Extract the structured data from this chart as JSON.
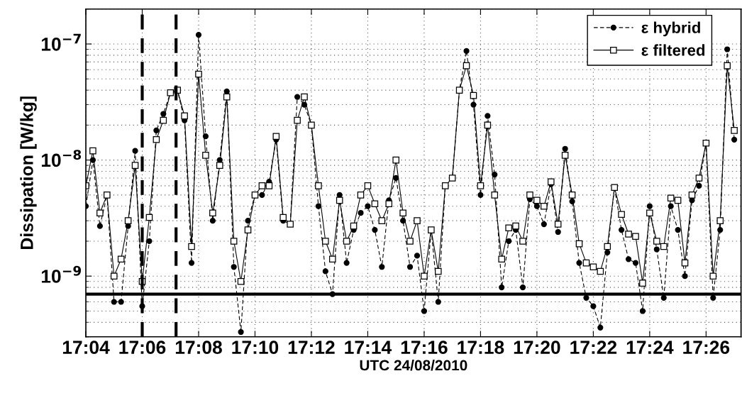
{
  "chart_data": {
    "type": "line",
    "xlabel": "UTC 24/08/2010",
    "ylabel": "Dissipation [W/kg]",
    "log": "y",
    "grid": true,
    "legend": "top right",
    "x": [
      17.06667,
      17.07083,
      17.075,
      17.07917,
      17.08333,
      17.0875,
      17.09167,
      17.09583,
      17.1,
      17.10417,
      17.10833,
      17.1125,
      17.11667,
      17.12083,
      17.125,
      17.12917,
      17.13333,
      17.1375,
      17.14167,
      17.14583,
      17.15,
      17.15417,
      17.15833,
      17.1625,
      17.16667,
      17.17083,
      17.175,
      17.17917,
      17.18333,
      17.1875,
      17.19167,
      17.19583,
      17.2,
      17.20417,
      17.20833,
      17.2125,
      17.21667,
      17.22083,
      17.225,
      17.22917,
      17.23333,
      17.2375,
      17.24167,
      17.24583,
      17.25,
      17.25417,
      17.25833,
      17.2625,
      17.26667,
      17.27083,
      17.275,
      17.27917,
      17.28333,
      17.2875,
      17.29167,
      17.29583,
      17.3,
      17.30417,
      17.30833,
      17.3125,
      17.31667,
      17.32083,
      17.325,
      17.32917,
      17.33333,
      17.3375,
      17.34167,
      17.34583,
      17.35,
      17.35417,
      17.35833,
      17.3625,
      17.36667,
      17.37083,
      17.375,
      17.37917,
      17.38333,
      17.3875,
      17.39167,
      17.39583,
      17.4,
      17.40417,
      17.40833,
      17.4125,
      17.41667,
      17.42083,
      17.425,
      17.42917,
      17.43333,
      17.4375,
      17.44167,
      17.44583,
      17.45
    ],
    "xlim": [
      17.06667,
      17.454
    ],
    "xticks": [
      {
        "value": 17.06667,
        "label": "17:04"
      },
      {
        "value": 17.1,
        "label": "17:06"
      },
      {
        "value": 17.13333,
        "label": "17:08"
      },
      {
        "value": 17.16667,
        "label": "17:10"
      },
      {
        "value": 17.2,
        "label": "17:12"
      },
      {
        "value": 17.23333,
        "label": "17:14"
      },
      {
        "value": 17.26667,
        "label": "17:16"
      },
      {
        "value": 17.3,
        "label": "17:18"
      },
      {
        "value": 17.33333,
        "label": "17:20"
      },
      {
        "value": 17.36667,
        "label": "17:22"
      },
      {
        "value": 17.4,
        "label": "17:24"
      },
      {
        "value": 17.43333,
        "label": "17:26"
      }
    ],
    "ylim": [
      3e-10,
      2e-07
    ],
    "yticks": [
      {
        "value": 1e-09,
        "label": "10$^{−9}$"
      },
      {
        "value": 1e-08,
        "label": "10$^{−8}$"
      },
      {
        "value": 1e-07,
        "label": "10$^{−7}$"
      }
    ],
    "ref_lines": [
      {
        "axis": "y",
        "value": 7e-10,
        "color": "#000000",
        "line_style": "solid"
      },
      {
        "axis": "x",
        "value": 17.1,
        "color": "#000000",
        "line_style": "dashed"
      },
      {
        "axis": "x",
        "value": 17.12,
        "color": "#000000",
        "line_style": "dashed"
      }
    ],
    "series": [
      {
        "name": "ε hybrid",
        "color": "#000000",
        "marker": "circle",
        "line_style": "dashed",
        "values": [
          4e-09,
          1e-08,
          2.7e-09,
          5e-09,
          6e-10,
          6e-10,
          2.7e-09,
          1.2e-08,
          5.5e-10,
          2e-09,
          1.8e-08,
          2.5e-08,
          3.8e-08,
          4e-08,
          2.2e-08,
          1.3e-09,
          1.2e-07,
          1.6e-08,
          3e-09,
          1e-08,
          3.9e-08,
          1.2e-09,
          3.3e-10,
          3e-09,
          5e-09,
          5e-09,
          6.5e-09,
          1.5e-08,
          3e-09,
          2.8e-09,
          3.5e-08,
          3e-08,
          2e-08,
          4e-09,
          1.1e-09,
          7e-10,
          5e-09,
          1.3e-09,
          2.5e-09,
          3.5e-09,
          4e-09,
          2.5e-09,
          1.2e-09,
          4.5e-09,
          7e-09,
          3e-09,
          1.2e-09,
          1.5e-09,
          5e-10,
          2.5e-09,
          6e-10,
          6e-09,
          7e-09,
          4e-08,
          8.7e-08,
          3e-08,
          5e-09,
          2.4e-08,
          7.5e-09,
          8e-10,
          2e-09,
          2.5e-09,
          8e-10,
          4.6e-09,
          4e-09,
          2.8e-09,
          6.2e-09,
          2.4e-09,
          1.25e-08,
          4.4e-09,
          1.3e-09,
          6.5e-10,
          5.5e-10,
          3.6e-10,
          1.6e-09,
          5.8e-09,
          2.5e-09,
          1.4e-09,
          1.3e-09,
          5e-10,
          4e-09,
          1.7e-09,
          6.5e-10,
          4e-09,
          2.5e-09,
          1e-09,
          4.5e-09,
          6e-09,
          1.4e-08,
          6.5e-10,
          2.5e-09,
          9e-08,
          1.5e-08
        ]
      },
      {
        "name": "ε filtered",
        "color": "#000000",
        "marker": "square",
        "line_style": "solid",
        "values": [
          6e-09,
          1.2e-08,
          3.5e-09,
          5e-09,
          1e-09,
          1.4e-09,
          3e-09,
          9e-09,
          9e-10,
          3.2e-09,
          1.5e-08,
          2.2e-08,
          3.8e-08,
          4e-08,
          2.4e-08,
          1.8e-09,
          5.5e-08,
          1.1e-08,
          3.5e-09,
          9e-09,
          3.5e-08,
          2e-09,
          9e-10,
          2.5e-09,
          5e-09,
          6e-09,
          6e-09,
          1.6e-08,
          3.2e-09,
          2.8e-09,
          2.2e-08,
          3.5e-08,
          2e-08,
          6e-09,
          2e-09,
          1.4e-09,
          4.5e-09,
          2e-09,
          2.7e-09,
          5e-09,
          6e-09,
          4.2e-09,
          3e-09,
          4.2e-09,
          1e-08,
          3.5e-09,
          2e-09,
          3e-09,
          1e-09,
          2.5e-09,
          1.1e-09,
          6e-09,
          7e-09,
          4e-08,
          6.5e-08,
          3.6e-08,
          6e-09,
          2e-08,
          5e-09,
          1.4e-09,
          2.6e-09,
          2.7e-09,
          2e-09,
          5e-09,
          4.5e-09,
          4e-09,
          6.5e-09,
          2.8e-09,
          1.1e-08,
          5e-09,
          1.9e-09,
          1.3e-09,
          1.2e-09,
          1.1e-09,
          1.8e-09,
          5.8e-09,
          3.4e-09,
          2.3e-09,
          2.2e-09,
          8.7e-10,
          3.5e-09,
          2e-09,
          1.8e-09,
          4.7e-09,
          4.5e-09,
          1.3e-09,
          5e-09,
          7e-09,
          1.4e-08,
          1e-09,
          3e-09,
          6.5e-08,
          1.8e-08
        ]
      }
    ]
  }
}
